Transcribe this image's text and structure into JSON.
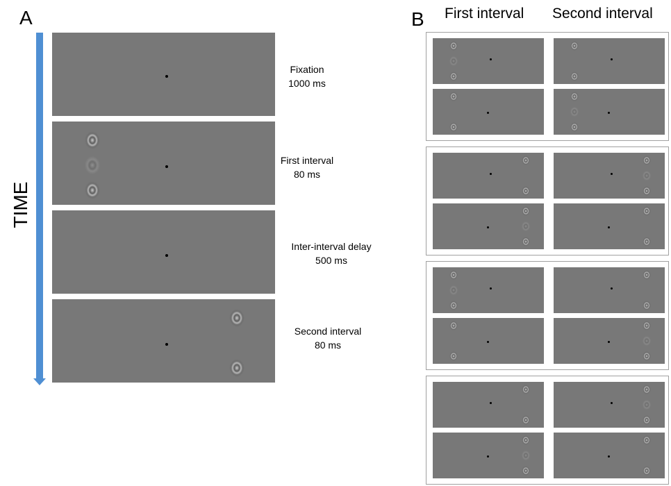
{
  "panel_a": {
    "letter": "A",
    "axis_label": "TIME",
    "stages": [
      {
        "name": "Fixation",
        "duration": "1000 ms"
      },
      {
        "name": "First interval",
        "duration": "80 ms"
      },
      {
        "name": "Inter-interval delay",
        "duration": "500 ms"
      },
      {
        "name": "Second interval",
        "duration": "80 ms"
      }
    ]
  },
  "panel_b": {
    "letter": "B",
    "column_headers": [
      "First interval",
      "Second interval"
    ]
  },
  "colors": {
    "screen_gray": "#787878",
    "time_arrow": "#4f8fd3",
    "group_border": "#a0a0a0"
  }
}
